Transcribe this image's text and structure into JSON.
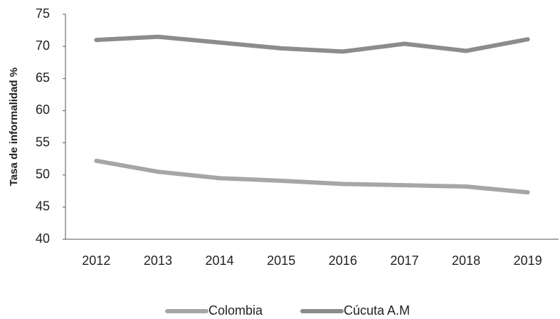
{
  "chart_data": {
    "type": "line",
    "ylabel": "Tasa de informalidad %",
    "categories": [
      "2012",
      "2013",
      "2014",
      "2015",
      "2016",
      "2017",
      "2018",
      "2019"
    ],
    "series": [
      {
        "name": "Colombia",
        "color": "#a6a6a6",
        "values": [
          52.2,
          50.5,
          49.5,
          49.1,
          48.6,
          48.4,
          48.2,
          47.3
        ]
      },
      {
        "name": "Cúcuta A.M",
        "color": "#8c8c8c",
        "values": [
          71.0,
          71.5,
          70.6,
          69.7,
          69.2,
          70.4,
          69.3,
          71.1
        ]
      }
    ],
    "ylim": [
      40,
      75
    ],
    "yticks": [
      40,
      45,
      50,
      55,
      60,
      65,
      70,
      75
    ],
    "grid": false,
    "legend": "bottom"
  }
}
